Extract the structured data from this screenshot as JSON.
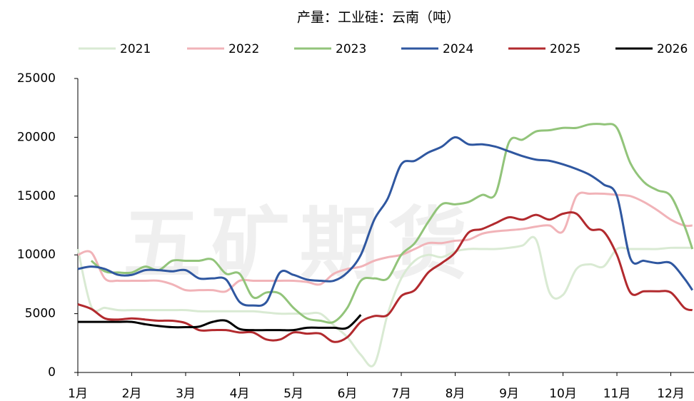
{
  "chart_data": {
    "type": "line",
    "title": "产量：工业硅：云南（吨）",
    "watermark": "五矿期货",
    "x": [
      1,
      1.25,
      1.5,
      1.75,
      2,
      2.25,
      2.5,
      2.75,
      3,
      3.25,
      3.5,
      3.75,
      4,
      4.25,
      4.5,
      4.75,
      5,
      5.25,
      5.5,
      5.75,
      6,
      6.25,
      6.5,
      6.75,
      7,
      7.25,
      7.5,
      7.75,
      8,
      8.25,
      8.5,
      8.75,
      9,
      9.25,
      9.5,
      9.75,
      10,
      10.25,
      10.5,
      10.75,
      11,
      11.25,
      11.5,
      11.75,
      12,
      12.25,
      12.4
    ],
    "series": [
      {
        "name": "2021",
        "color": "#d9ead3",
        "values": [
          10500,
          5600,
          5500,
          5300,
          5300,
          5300,
          5300,
          5300,
          5300,
          5200,
          5200,
          5200,
          5200,
          5200,
          5100,
          5000,
          5000,
          5000,
          5000,
          4000,
          3000,
          1500,
          700,
          5000,
          8000,
          9500,
          10000,
          9800,
          10300,
          10500,
          10500,
          10500,
          10600,
          10800,
          11300,
          6800,
          6600,
          8800,
          9200,
          9000,
          10500,
          10500,
          10500,
          10500,
          10600,
          10600,
          10600
        ]
      },
      {
        "name": "2022",
        "color": "#f1b3b8",
        "values": [
          10000,
          10200,
          8000,
          7800,
          7800,
          7800,
          7800,
          7500,
          7000,
          7000,
          7000,
          6900,
          7800,
          7800,
          7800,
          7800,
          7800,
          7700,
          7500,
          8400,
          8800,
          9000,
          9500,
          9800,
          10000,
          10500,
          11000,
          11000,
          11200,
          11300,
          11800,
          12000,
          12100,
          12200,
          12400,
          12500,
          12000,
          15000,
          15200,
          15200,
          15100,
          15000,
          14500,
          13800,
          13000,
          12500,
          12500
        ]
      },
      {
        "name": "2023",
        "color": "#92c47a",
        "values": [
          null,
          9500,
          8600,
          8500,
          8500,
          9000,
          8700,
          9500,
          9500,
          9500,
          9600,
          8400,
          8400,
          6400,
          6800,
          6700,
          5500,
          4600,
          4400,
          4300,
          5500,
          7800,
          8000,
          8000,
          10000,
          11000,
          12800,
          14300,
          14300,
          14500,
          15100,
          15200,
          19600,
          19800,
          20500,
          20600,
          20800,
          20800,
          21100,
          21100,
          20800,
          17800,
          16200,
          15500,
          15000,
          12500,
          10500
        ]
      },
      {
        "name": "2024",
        "color": "#2f57a0",
        "values": [
          8800,
          9000,
          8800,
          8300,
          8300,
          8700,
          8700,
          8600,
          8700,
          8000,
          8000,
          7900,
          6000,
          5700,
          6000,
          8500,
          8300,
          7900,
          7800,
          7800,
          8500,
          10000,
          13000,
          14800,
          17700,
          18000,
          18700,
          19200,
          20000,
          19400,
          19400,
          19200,
          18800,
          18400,
          18100,
          18000,
          17700,
          17300,
          16800,
          16000,
          15000,
          9700,
          9500,
          9300,
          9300,
          8000,
          7000
        ]
      },
      {
        "name": "2025",
        "color": "#b22a2e",
        "values": [
          5800,
          5400,
          4600,
          4500,
          4600,
          4500,
          4400,
          4400,
          4200,
          3600,
          3600,
          3600,
          3400,
          3400,
          2800,
          2800,
          3400,
          3300,
          3300,
          2600,
          3000,
          4300,
          4800,
          4900,
          6500,
          7000,
          8500,
          9300,
          10200,
          11900,
          12200,
          12700,
          13200,
          13000,
          13400,
          13000,
          13500,
          13500,
          12200,
          12000,
          10000,
          6800,
          6900,
          6900,
          6800,
          5500,
          5300
        ]
      },
      {
        "name": "2026",
        "color": "#000000",
        "values": [
          4300,
          4300,
          4300,
          4300,
          4300,
          4100,
          3950,
          3850,
          3850,
          3900,
          4300,
          4400,
          3700,
          3600,
          3600,
          3600,
          3600,
          3800,
          3800,
          3800,
          3800,
          4900,
          null,
          null,
          null,
          null,
          null,
          null,
          null,
          null,
          null,
          null,
          null,
          null,
          null,
          null,
          null,
          null,
          null,
          null,
          null,
          null,
          null,
          null,
          null,
          null,
          null
        ]
      }
    ],
    "xlim": [
      1,
      12.43
    ],
    "xticks": [
      {
        "value": 1,
        "label": "1月"
      },
      {
        "value": 2,
        "label": "2月"
      },
      {
        "value": 3,
        "label": "3月"
      },
      {
        "value": 4,
        "label": "4月"
      },
      {
        "value": 5,
        "label": "5月"
      },
      {
        "value": 6,
        "label": "6月"
      },
      {
        "value": 7,
        "label": "7月"
      },
      {
        "value": 8,
        "label": "8月"
      },
      {
        "value": 9,
        "label": "9月"
      },
      {
        "value": 10,
        "label": "10月"
      },
      {
        "value": 11,
        "label": "11月"
      },
      {
        "value": 12,
        "label": "12月"
      }
    ],
    "ylim": [
      0,
      25000
    ],
    "yticks": [
      0,
      5000,
      10000,
      15000,
      20000,
      25000
    ],
    "grid": false,
    "legend": "top"
  }
}
